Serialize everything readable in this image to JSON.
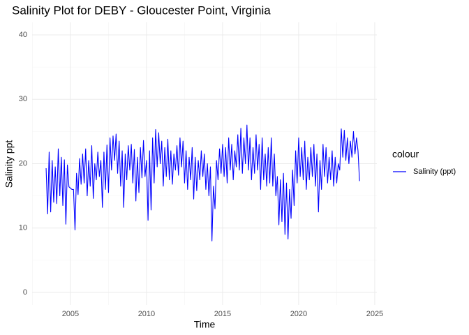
{
  "chart_data": {
    "type": "line",
    "title": "Salinity Plot for DEBY - Gloucester Point, Virginia",
    "x_label": "Time",
    "y_label": "Salinity ppt",
    "legend_title": "colour",
    "legend_position": "right",
    "xlim": [
      2002.48,
      2025.14
    ],
    "ylim": [
      -1.95,
      41.95
    ],
    "xticks": [
      2005,
      2010,
      2015,
      2020,
      2025
    ],
    "yticks": [
      0,
      10,
      20,
      30,
      40
    ],
    "x_minor_ticks": [
      2002.5,
      2007.5,
      2012.5,
      2017.5,
      2022.5
    ],
    "y_minor_ticks": [
      5,
      15,
      25,
      35
    ],
    "grid": true,
    "x": [
      2003.4,
      2003.5,
      2003.6,
      2003.7,
      2003.8,
      2003.9,
      2004.0,
      2004.1,
      2004.2,
      2004.3,
      2004.4,
      2004.5,
      2004.6,
      2004.7,
      2004.8,
      2004.9,
      2005.0,
      2005.1,
      2005.2,
      2005.3,
      2005.4,
      2005.5,
      2005.6,
      2005.7,
      2005.8,
      2005.9,
      2006.0,
      2006.1,
      2006.2,
      2006.3,
      2006.4,
      2006.5,
      2006.6,
      2006.7,
      2006.8,
      2006.9,
      2007.0,
      2007.1,
      2007.2,
      2007.3,
      2007.4,
      2007.5,
      2007.6,
      2007.7,
      2007.8,
      2007.9,
      2008.0,
      2008.1,
      2008.2,
      2008.3,
      2008.4,
      2008.5,
      2008.6,
      2008.7,
      2008.8,
      2008.9,
      2009.0,
      2009.1,
      2009.2,
      2009.3,
      2009.4,
      2009.5,
      2009.6,
      2009.7,
      2009.8,
      2009.9,
      2010.0,
      2010.1,
      2010.2,
      2010.3,
      2010.4,
      2010.5,
      2010.6,
      2010.7,
      2010.8,
      2010.9,
      2011.0,
      2011.1,
      2011.2,
      2011.3,
      2011.4,
      2011.5,
      2011.6,
      2011.7,
      2011.8,
      2011.9,
      2012.0,
      2012.1,
      2012.2,
      2012.3,
      2012.4,
      2012.5,
      2012.6,
      2012.7,
      2012.8,
      2012.9,
      2013.0,
      2013.1,
      2013.2,
      2013.3,
      2013.4,
      2013.5,
      2013.6,
      2013.7,
      2013.8,
      2013.9,
      2014.0,
      2014.1,
      2014.2,
      2014.3,
      2014.4,
      2014.5,
      2014.6,
      2014.7,
      2014.8,
      2014.9,
      2015.0,
      2015.1,
      2015.2,
      2015.3,
      2015.4,
      2015.5,
      2015.6,
      2015.7,
      2015.8,
      2015.9,
      2016.0,
      2016.1,
      2016.2,
      2016.3,
      2016.4,
      2016.5,
      2016.6,
      2016.7,
      2016.8,
      2016.9,
      2017.0,
      2017.1,
      2017.2,
      2017.3,
      2017.4,
      2017.5,
      2017.6,
      2017.7,
      2017.8,
      2017.9,
      2018.0,
      2018.1,
      2018.2,
      2018.3,
      2018.4,
      2018.5,
      2018.6,
      2018.7,
      2018.8,
      2018.9,
      2019.0,
      2019.1,
      2019.2,
      2019.3,
      2019.4,
      2019.5,
      2019.6,
      2019.7,
      2019.8,
      2019.9,
      2020.0,
      2020.1,
      2020.2,
      2020.3,
      2020.4,
      2020.5,
      2020.6,
      2020.7,
      2020.8,
      2020.9,
      2021.0,
      2021.1,
      2021.2,
      2021.3,
      2021.4,
      2021.5,
      2021.6,
      2021.7,
      2021.8,
      2021.9,
      2022.0,
      2022.1,
      2022.2,
      2022.3,
      2022.4,
      2022.5,
      2022.6,
      2022.7,
      2022.8,
      2022.9,
      2023.0,
      2023.1,
      2023.2,
      2023.3,
      2023.4,
      2023.5,
      2023.6,
      2023.7,
      2023.8,
      2023.9,
      2024.0
    ],
    "series": [
      {
        "name": "Salinity (ppt)",
        "color": "#0000ff",
        "values": [
          19.3,
          12.2,
          21.8,
          12.5,
          20.5,
          14.0,
          19.5,
          13.8,
          22.3,
          15.0,
          21.0,
          13.5,
          20.6,
          10.6,
          19.8,
          16.4,
          16.2,
          16.0,
          16.0,
          9.7,
          18.5,
          15.2,
          20.8,
          16.8,
          21.5,
          17.0,
          22.3,
          15.0,
          20.5,
          16.5,
          22.8,
          14.6,
          20.0,
          17.5,
          21.8,
          18.0,
          20.5,
          13.2,
          21.8,
          16.0,
          22.9,
          15.5,
          24.0,
          19.0,
          24.3,
          20.5,
          24.6,
          18.5,
          23.5,
          16.5,
          22.0,
          13.2,
          21.5,
          17.5,
          22.8,
          19.0,
          23.0,
          17.0,
          22.2,
          14.2,
          21.0,
          15.5,
          22.5,
          17.8,
          23.6,
          18.0,
          20.5,
          11.2,
          22.0,
          12.8,
          24.0,
          17.0,
          25.3,
          19.5,
          24.8,
          20.0,
          23.5,
          16.5,
          22.5,
          18.0,
          23.8,
          17.5,
          22.0,
          16.8,
          21.5,
          19.0,
          22.8,
          18.2,
          24.0,
          19.5,
          23.5,
          17.0,
          22.0,
          16.0,
          21.0,
          17.5,
          22.5,
          14.5,
          21.0,
          15.8,
          20.5,
          17.5,
          22.0,
          18.0,
          21.5,
          16.0,
          20.0,
          15.0,
          19.5,
          8.0,
          16.5,
          13.0,
          20.5,
          17.5,
          22.3,
          18.5,
          23.0,
          18.0,
          22.5,
          17.0,
          24.0,
          19.0,
          23.0,
          17.5,
          22.0,
          19.5,
          24.5,
          19.0,
          25.5,
          18.5,
          24.0,
          20.0,
          26.0,
          19.0,
          24.0,
          17.5,
          22.5,
          18.5,
          24.5,
          19.0,
          23.0,
          16.0,
          24.0,
          17.5,
          21.5,
          16.5,
          22.5,
          17.0,
          24.0,
          16.5,
          21.5,
          15.0,
          18.0,
          10.5,
          17.5,
          11.0,
          18.5,
          9.0,
          17.0,
          8.3,
          16.0,
          11.5,
          19.0,
          13.5,
          22.0,
          17.0,
          24.0,
          18.0,
          22.5,
          17.5,
          23.5,
          16.0,
          21.0,
          17.5,
          22.5,
          18.0,
          23.0,
          16.5,
          21.5,
          12.5,
          20.5,
          16.0,
          23.0,
          18.0,
          22.5,
          17.0,
          21.0,
          17.5,
          22.0,
          16.5,
          21.0,
          17.0,
          20.0,
          19.0,
          25.4,
          21.0,
          25.2,
          20.5,
          24.0,
          20.0,
          23.5,
          21.0,
          25.0,
          21.5,
          24.0,
          22.0,
          17.3
        ]
      }
    ]
  }
}
